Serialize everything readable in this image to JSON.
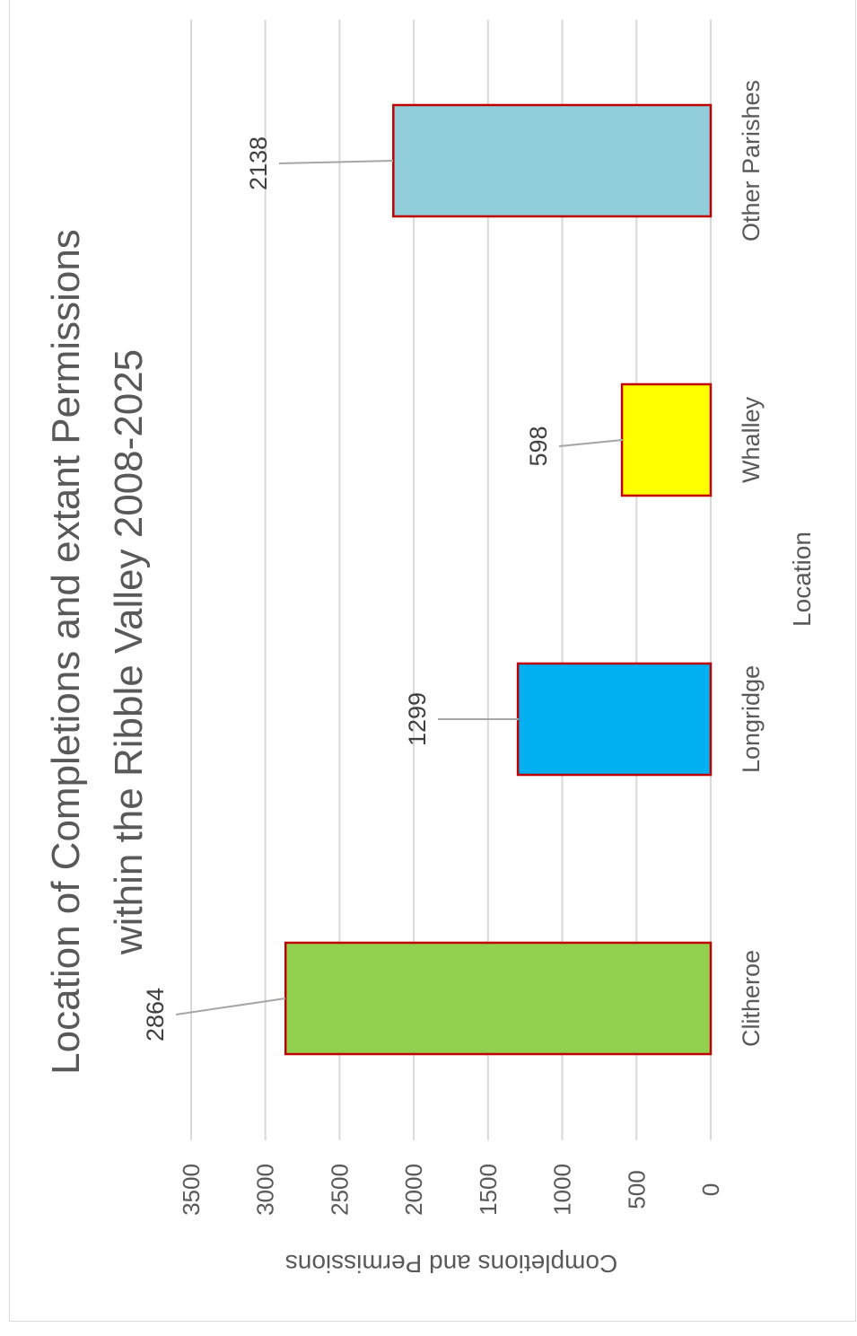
{
  "chart_data": {
    "type": "bar",
    "title_line1": "Location of Completions and extant Permissions",
    "title_line2": "within the Ribble Valley 2008-2025",
    "xlabel": "Location",
    "ylabel": "Completions and Permissions",
    "categories": [
      "Clitheroe",
      "Longridge",
      "Whalley",
      "Other Parishes"
    ],
    "values": [
      2864,
      1299,
      598,
      2138
    ],
    "data_labels": [
      "2864",
      "1299",
      "598",
      "2138"
    ],
    "bar_colors": [
      "#92d050",
      "#00b0f0",
      "#ffff00",
      "#92cddc"
    ],
    "bar_border_color": "#c00000",
    "ylim": [
      0,
      3500
    ],
    "yticks": [
      "0",
      "500",
      "1000",
      "1500",
      "2000",
      "2500",
      "3000",
      "3500"
    ],
    "ytick_values": [
      0,
      500,
      1000,
      1500,
      2000,
      2500,
      3000,
      3500
    ],
    "grid": true,
    "orientation": "rotated-90-clockwise"
  }
}
